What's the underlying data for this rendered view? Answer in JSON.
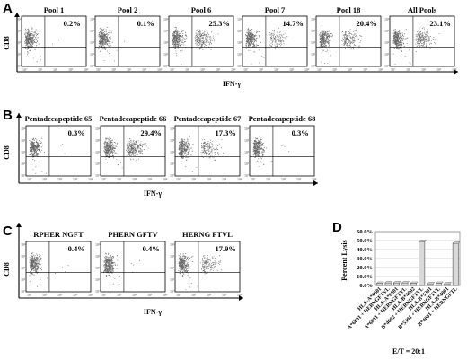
{
  "panel_a": {
    "label": "A",
    "titles": [
      "Pool 1",
      "Pool 2",
      "Pool 6",
      "Pool 7",
      "Pool 18",
      "All Pools"
    ],
    "percents": [
      "0.2%",
      "0.1%",
      "25.3%",
      "14.7%",
      "20.4%",
      "23.1%"
    ],
    "xlabel": "IFN-γ",
    "ylabel": "CD8"
  },
  "panel_b": {
    "label": "B",
    "titles": [
      "Pentadecapeptide 65",
      "Pentadecapeptide 66",
      "Pentadecapeptide 67",
      "Pentadecapeptide 68"
    ],
    "percents": [
      "0.3%",
      "29.4%",
      "17.3%",
      "0.3%"
    ],
    "xlabel": "IFN-γ",
    "ylabel": "CD8"
  },
  "panel_c": {
    "label": "C",
    "titles": [
      "RPHER NGFT",
      "PHERN GFTV",
      "HERNG FTVL"
    ],
    "percents": [
      "0.4%",
      "0.4%",
      "17.9%"
    ],
    "xlabel": "IFN-γ",
    "ylabel": "CD8"
  },
  "panel_d": {
    "label": "D",
    "footnote": "E/T = 20:1"
  },
  "chart_data": {
    "type": "bar",
    "title": "",
    "ylabel": "Percent Lysis",
    "xlabel": "",
    "ylim": [
      0,
      60
    ],
    "yticks": [
      "0.0%",
      "10.0%",
      "20.0%",
      "30.0%",
      "40.0%",
      "50.0%",
      "60.0%"
    ],
    "grid": true,
    "categories": [
      "HLA-A*6601",
      "A*6601 + HERNGFTVL",
      "HLA-A*6801",
      "A*6801 + HERNGFTVL",
      "HLA-B*4002",
      "B*4002 + HERNGFTVL",
      "HLA-B*5301",
      "B*5301 + HERNGFTVL",
      "HLA-B*4001",
      "B*4001 + HERNGFTL"
    ],
    "values": [
      2.5,
      3,
      3,
      3,
      2.5,
      49,
      2,
      2.5,
      2,
      47
    ]
  }
}
